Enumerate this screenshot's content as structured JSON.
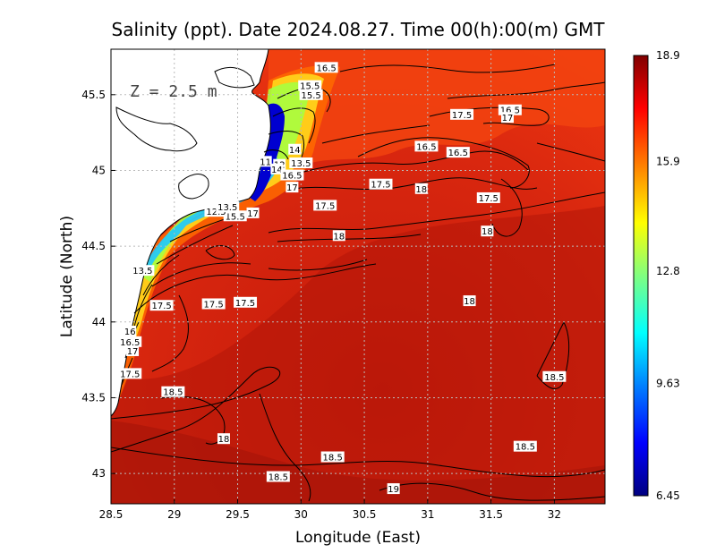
{
  "chart_data": {
    "type": "heatmap",
    "title": "Salinity (ppt). Date 2024.08.27. Time 00(h):00(m) GMT",
    "xlabel": "Longitude (East)",
    "ylabel": "Latitude (North)",
    "xlim": [
      28.5,
      32.4
    ],
    "ylim": [
      42.8,
      45.8
    ],
    "xticks": [
      "28.5",
      "29",
      "29.5",
      "30",
      "30.5",
      "31",
      "31.5",
      "32"
    ],
    "yticks": [
      "43",
      "43.5",
      "44",
      "44.5",
      "45",
      "45.5"
    ],
    "grid": true,
    "depth_label": "Z = 2.5 m",
    "colorbar": {
      "min": 6.45,
      "max": 18.9,
      "ticks": [
        "18.9",
        "15.9",
        "12.8",
        "9.63",
        "6.45"
      ],
      "colors": [
        "#000080",
        "#0000ff",
        "#0080ff",
        "#00ffff",
        "#80ff80",
        "#ffff00",
        "#ff8000",
        "#ff0000",
        "#800000"
      ]
    },
    "contour_labels": [
      {
        "lon": 30.2,
        "lat": 45.68,
        "text": "16.5"
      },
      {
        "lon": 30.07,
        "lat": 45.56,
        "text": "15.5"
      },
      {
        "lon": 30.08,
        "lat": 45.5,
        "text": "15.5"
      },
      {
        "lon": 31.27,
        "lat": 45.37,
        "text": "17.5"
      },
      {
        "lon": 31.65,
        "lat": 45.4,
        "text": "16.5"
      },
      {
        "lon": 31.63,
        "lat": 45.35,
        "text": "17"
      },
      {
        "lon": 29.95,
        "lat": 45.14,
        "text": "14"
      },
      {
        "lon": 30.0,
        "lat": 45.05,
        "text": "13.5"
      },
      {
        "lon": 29.72,
        "lat": 45.06,
        "text": "11"
      },
      {
        "lon": 29.83,
        "lat": 45.04,
        "text": "12"
      },
      {
        "lon": 29.81,
        "lat": 45.01,
        "text": "14"
      },
      {
        "lon": 29.93,
        "lat": 44.97,
        "text": "16.5"
      },
      {
        "lon": 29.93,
        "lat": 44.89,
        "text": "17"
      },
      {
        "lon": 30.99,
        "lat": 45.16,
        "text": "16.5"
      },
      {
        "lon": 31.24,
        "lat": 45.12,
        "text": "16.5"
      },
      {
        "lon": 30.63,
        "lat": 44.91,
        "text": "17.5"
      },
      {
        "lon": 30.95,
        "lat": 44.88,
        "text": "18"
      },
      {
        "lon": 31.48,
        "lat": 44.82,
        "text": "17.5"
      },
      {
        "lon": 30.19,
        "lat": 44.77,
        "text": "17.5"
      },
      {
        "lon": 29.62,
        "lat": 44.72,
        "text": "17"
      },
      {
        "lon": 29.48,
        "lat": 44.7,
        "text": "15.5"
      },
      {
        "lon": 29.33,
        "lat": 44.73,
        "text": "12.5"
      },
      {
        "lon": 29.42,
        "lat": 44.76,
        "text": "13.5"
      },
      {
        "lon": 31.47,
        "lat": 44.6,
        "text": "18"
      },
      {
        "lon": 30.3,
        "lat": 44.57,
        "text": "18"
      },
      {
        "lon": 28.75,
        "lat": 44.34,
        "text": "13.5"
      },
      {
        "lon": 28.9,
        "lat": 44.11,
        "text": "17.5"
      },
      {
        "lon": 29.31,
        "lat": 44.12,
        "text": "17.5"
      },
      {
        "lon": 29.56,
        "lat": 44.13,
        "text": "17.5"
      },
      {
        "lon": 31.33,
        "lat": 44.14,
        "text": "18"
      },
      {
        "lon": 28.65,
        "lat": 43.94,
        "text": "16"
      },
      {
        "lon": 28.65,
        "lat": 43.87,
        "text": "16.5"
      },
      {
        "lon": 28.67,
        "lat": 43.81,
        "text": "17"
      },
      {
        "lon": 28.65,
        "lat": 43.66,
        "text": "17.5"
      },
      {
        "lon": 28.99,
        "lat": 43.54,
        "text": "18.5"
      },
      {
        "lon": 32.0,
        "lat": 43.64,
        "text": "18.5"
      },
      {
        "lon": 29.39,
        "lat": 43.23,
        "text": "18"
      },
      {
        "lon": 31.77,
        "lat": 43.18,
        "text": "18.5"
      },
      {
        "lon": 30.25,
        "lat": 43.11,
        "text": "18.5"
      },
      {
        "lon": 29.82,
        "lat": 42.98,
        "text": "18.5"
      },
      {
        "lon": 30.73,
        "lat": 42.9,
        "text": "19"
      }
    ]
  }
}
